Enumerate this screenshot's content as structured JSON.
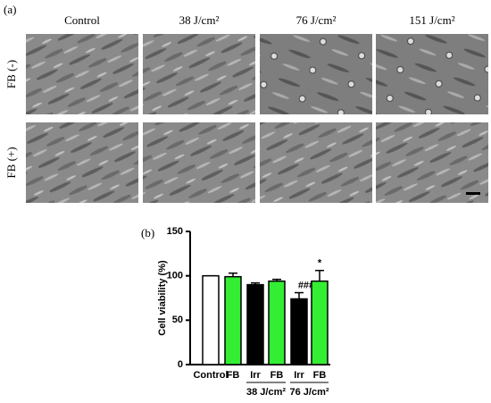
{
  "panel_a": {
    "label": "(a)",
    "columns": [
      "Control",
      "38 J/cm²",
      "76 J/cm²",
      "151 J/cm²"
    ],
    "rows": [
      "FB (-)",
      "FB (+)"
    ]
  },
  "chart_data": {
    "type": "bar",
    "panel_label": "(b)",
    "y_label": "Cell viability (%)",
    "categories": [
      "Control",
      "FB",
      "Irr",
      "FB",
      "Irr",
      "FB"
    ],
    "values": [
      100,
      99,
      90,
      94,
      74,
      94
    ],
    "errors": [
      0,
      4,
      2,
      2,
      7,
      12
    ],
    "colors": [
      "#ffffff",
      "#33ee33",
      "#000000",
      "#33ee33",
      "#000000",
      "#33ee33"
    ],
    "annotations": [
      null,
      null,
      null,
      null,
      "###",
      "*"
    ],
    "groups": [
      "38 J/cm²",
      "76 J/cm²"
    ],
    "ylim": [
      0,
      150
    ],
    "yticks": [
      0,
      50,
      100,
      150
    ]
  }
}
